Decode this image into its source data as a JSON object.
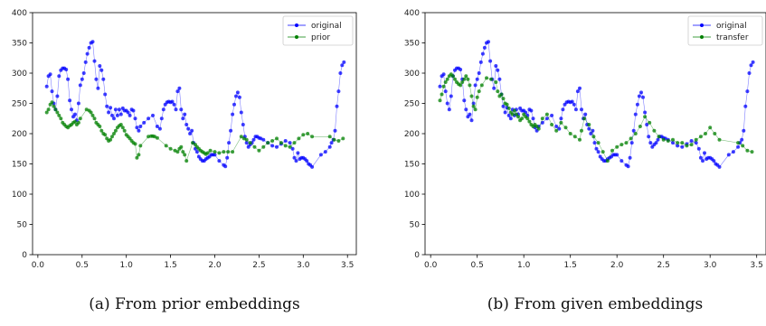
{
  "chart_data": [
    {
      "type": "line",
      "caption": "(a) From prior embeddings",
      "xlim": [
        -0.06,
        3.6
      ],
      "ylim": [
        0,
        400
      ],
      "xticks": [
        0.0,
        0.5,
        1.0,
        1.5,
        2.0,
        2.5,
        3.0,
        3.5
      ],
      "xtick_labels": [
        "0.0",
        "0.5",
        "1.0",
        "1.5",
        "2.0",
        "2.5",
        "3.0",
        "3.5"
      ],
      "yticks": [
        0,
        50,
        100,
        150,
        200,
        250,
        300,
        350,
        400
      ],
      "ytick_labels": [
        "0",
        "50",
        "100",
        "150",
        "200",
        "250",
        "300",
        "350",
        "400"
      ],
      "grid": false,
      "legend": "top-right",
      "series": [
        {
          "name": "original",
          "color": "#0000ff",
          "x": [
            0.1,
            0.12,
            0.14,
            0.16,
            0.18,
            0.2,
            0.22,
            0.24,
            0.26,
            0.28,
            0.3,
            0.32,
            0.34,
            0.36,
            0.38,
            0.4,
            0.42,
            0.44,
            0.46,
            0.48,
            0.5,
            0.52,
            0.54,
            0.56,
            0.58,
            0.6,
            0.62,
            0.64,
            0.66,
            0.68,
            0.7,
            0.72,
            0.74,
            0.76,
            0.78,
            0.8,
            0.82,
            0.84,
            0.86,
            0.88,
            0.9,
            0.92,
            0.94,
            0.96,
            0.98,
            1.0,
            1.02,
            1.04,
            1.06,
            1.08,
            1.1,
            1.12,
            1.14,
            1.16,
            1.2,
            1.25,
            1.3,
            1.35,
            1.38,
            1.4,
            1.42,
            1.44,
            1.46,
            1.48,
            1.5,
            1.52,
            1.54,
            1.56,
            1.58,
            1.6,
            1.62,
            1.64,
            1.66,
            1.68,
            1.7,
            1.72,
            1.74,
            1.76,
            1.78,
            1.8,
            1.82,
            1.84,
            1.86,
            1.88,
            1.9,
            1.92,
            1.94,
            1.96,
            1.98,
            2.0,
            2.05,
            2.1,
            2.12,
            2.14,
            2.16,
            2.18,
            2.2,
            2.22,
            2.24,
            2.26,
            2.28,
            2.3,
            2.32,
            2.34,
            2.36,
            2.38,
            2.4,
            2.42,
            2.44,
            2.46,
            2.48,
            2.5,
            2.52,
            2.55,
            2.6,
            2.65,
            2.7,
            2.75,
            2.8,
            2.85,
            2.88,
            2.9,
            2.92,
            2.94,
            2.96,
            2.98,
            3.0,
            3.02,
            3.04,
            3.06,
            3.08,
            3.1,
            3.2,
            3.25,
            3.3,
            3.32,
            3.34,
            3.36,
            3.38,
            3.4,
            3.42,
            3.44,
            3.46
          ],
          "y": [
            278,
            295,
            298,
            270,
            250,
            240,
            262,
            295,
            305,
            308,
            308,
            306,
            290,
            255,
            240,
            228,
            232,
            222,
            250,
            280,
            290,
            300,
            318,
            332,
            342,
            350,
            352,
            320,
            290,
            275,
            312,
            305,
            290,
            265,
            245,
            235,
            243,
            230,
            225,
            240,
            230,
            240,
            232,
            242,
            238,
            238,
            235,
            230,
            240,
            238,
            225,
            210,
            205,
            212,
            218,
            225,
            230,
            212,
            208,
            225,
            240,
            248,
            252,
            253,
            252,
            253,
            248,
            240,
            270,
            275,
            240,
            225,
            232,
            215,
            208,
            200,
            205,
            185,
            175,
            170,
            162,
            158,
            155,
            155,
            158,
            160,
            162,
            165,
            165,
            165,
            155,
            148,
            146,
            160,
            185,
            205,
            232,
            248,
            262,
            268,
            260,
            235,
            215,
            195,
            185,
            178,
            182,
            185,
            190,
            195,
            195,
            193,
            192,
            190,
            185,
            180,
            178,
            183,
            188,
            185,
            175,
            160,
            155,
            168,
            158,
            160,
            160,
            158,
            155,
            150,
            148,
            145,
            165,
            170,
            178,
            185,
            190,
            205,
            245,
            270,
            300,
            313,
            318
          ]
        },
        {
          "name": "prior",
          "color": "#008000",
          "x": [
            0.1,
            0.12,
            0.14,
            0.16,
            0.18,
            0.2,
            0.22,
            0.24,
            0.26,
            0.28,
            0.3,
            0.32,
            0.34,
            0.36,
            0.38,
            0.4,
            0.42,
            0.44,
            0.46,
            0.48,
            0.55,
            0.58,
            0.6,
            0.62,
            0.64,
            0.66,
            0.68,
            0.7,
            0.72,
            0.74,
            0.76,
            0.78,
            0.8,
            0.82,
            0.84,
            0.86,
            0.88,
            0.9,
            0.92,
            0.94,
            0.96,
            0.98,
            1.0,
            1.02,
            1.04,
            1.06,
            1.08,
            1.1,
            1.12,
            1.14,
            1.16,
            1.25,
            1.28,
            1.3,
            1.32,
            1.35,
            1.45,
            1.5,
            1.55,
            1.58,
            1.6,
            1.62,
            1.64,
            1.66,
            1.68,
            1.75,
            1.78,
            1.8,
            1.82,
            1.84,
            1.86,
            1.88,
            1.9,
            1.92,
            1.95,
            2.0,
            2.05,
            2.1,
            2.15,
            2.2,
            2.3,
            2.33,
            2.36,
            2.4,
            2.45,
            2.5,
            2.55,
            2.6,
            2.65,
            2.7,
            2.75,
            2.8,
            2.85,
            2.9,
            2.95,
            3.0,
            3.05,
            3.1,
            3.3,
            3.35,
            3.4,
            3.45
          ],
          "y": [
            235,
            240,
            248,
            252,
            245,
            240,
            235,
            230,
            225,
            218,
            215,
            212,
            210,
            213,
            215,
            218,
            220,
            215,
            218,
            225,
            240,
            238,
            235,
            230,
            225,
            218,
            215,
            212,
            205,
            200,
            198,
            192,
            188,
            190,
            195,
            200,
            205,
            210,
            213,
            215,
            210,
            205,
            198,
            195,
            192,
            188,
            185,
            183,
            160,
            165,
            180,
            195,
            196,
            196,
            195,
            193,
            180,
            175,
            172,
            170,
            175,
            178,
            170,
            165,
            155,
            185,
            182,
            178,
            175,
            172,
            170,
            168,
            166,
            168,
            172,
            170,
            168,
            170,
            170,
            170,
            195,
            192,
            190,
            185,
            178,
            172,
            178,
            185,
            188,
            192,
            185,
            180,
            178,
            185,
            192,
            198,
            200,
            195,
            195,
            190,
            188,
            192
          ]
        }
      ]
    },
    {
      "type": "line",
      "caption": "(b) From given embeddings",
      "xlim": [
        -0.06,
        3.6
      ],
      "ylim": [
        0,
        400
      ],
      "xticks": [
        0.0,
        0.5,
        1.0,
        1.5,
        2.0,
        2.5,
        3.0,
        3.5
      ],
      "xtick_labels": [
        "0.0",
        "0.5",
        "1.0",
        "1.5",
        "2.0",
        "2.5",
        "3.0",
        "3.5"
      ],
      "yticks": [
        0,
        50,
        100,
        150,
        200,
        250,
        300,
        350,
        400
      ],
      "ytick_labels": [
        "0",
        "50",
        "100",
        "150",
        "200",
        "250",
        "300",
        "350",
        "400"
      ],
      "grid": false,
      "legend": "top-right",
      "series": [
        {
          "name": "original",
          "color": "#0000ff",
          "x": [
            0.1,
            0.12,
            0.14,
            0.16,
            0.18,
            0.2,
            0.22,
            0.24,
            0.26,
            0.28,
            0.3,
            0.32,
            0.34,
            0.36,
            0.38,
            0.4,
            0.42,
            0.44,
            0.46,
            0.48,
            0.5,
            0.52,
            0.54,
            0.56,
            0.58,
            0.6,
            0.62,
            0.64,
            0.66,
            0.68,
            0.7,
            0.72,
            0.74,
            0.76,
            0.78,
            0.8,
            0.82,
            0.84,
            0.86,
            0.88,
            0.9,
            0.92,
            0.94,
            0.96,
            0.98,
            1.0,
            1.02,
            1.04,
            1.06,
            1.08,
            1.1,
            1.12,
            1.14,
            1.16,
            1.2,
            1.25,
            1.3,
            1.35,
            1.38,
            1.4,
            1.42,
            1.44,
            1.46,
            1.48,
            1.5,
            1.52,
            1.54,
            1.56,
            1.58,
            1.6,
            1.62,
            1.64,
            1.66,
            1.68,
            1.7,
            1.72,
            1.74,
            1.76,
            1.78,
            1.8,
            1.82,
            1.84,
            1.86,
            1.88,
            1.9,
            1.92,
            1.94,
            1.96,
            1.98,
            2.0,
            2.05,
            2.1,
            2.12,
            2.14,
            2.16,
            2.18,
            2.2,
            2.22,
            2.24,
            2.26,
            2.28,
            2.3,
            2.32,
            2.34,
            2.36,
            2.38,
            2.4,
            2.42,
            2.44,
            2.46,
            2.48,
            2.5,
            2.52,
            2.55,
            2.6,
            2.65,
            2.7,
            2.75,
            2.8,
            2.85,
            2.88,
            2.9,
            2.92,
            2.94,
            2.96,
            2.98,
            3.0,
            3.02,
            3.04,
            3.06,
            3.08,
            3.1,
            3.2,
            3.25,
            3.3,
            3.32,
            3.34,
            3.36,
            3.38,
            3.4,
            3.42,
            3.44,
            3.46
          ],
          "y": [
            278,
            295,
            298,
            270,
            250,
            240,
            262,
            295,
            305,
            308,
            308,
            306,
            290,
            255,
            240,
            228,
            232,
            222,
            250,
            280,
            290,
            300,
            318,
            332,
            342,
            350,
            352,
            320,
            290,
            275,
            312,
            305,
            290,
            265,
            245,
            235,
            243,
            230,
            225,
            240,
            230,
            240,
            232,
            242,
            238,
            238,
            235,
            230,
            240,
            238,
            225,
            210,
            205,
            212,
            218,
            225,
            230,
            212,
            208,
            225,
            240,
            248,
            252,
            253,
            252,
            253,
            248,
            240,
            270,
            275,
            240,
            225,
            232,
            215,
            208,
            200,
            205,
            185,
            175,
            170,
            162,
            158,
            155,
            155,
            158,
            160,
            162,
            165,
            165,
            165,
            155,
            148,
            146,
            160,
            185,
            205,
            232,
            248,
            262,
            268,
            260,
            235,
            215,
            195,
            185,
            178,
            182,
            185,
            190,
            195,
            195,
            193,
            192,
            190,
            185,
            180,
            178,
            183,
            188,
            185,
            175,
            160,
            155,
            168,
            158,
            160,
            160,
            158,
            155,
            150,
            148,
            145,
            165,
            170,
            178,
            185,
            190,
            205,
            245,
            270,
            300,
            313,
            318
          ]
        },
        {
          "name": "transfer",
          "color": "#008000",
          "x": [
            0.1,
            0.12,
            0.14,
            0.16,
            0.18,
            0.2,
            0.22,
            0.24,
            0.26,
            0.28,
            0.3,
            0.32,
            0.34,
            0.36,
            0.38,
            0.4,
            0.42,
            0.44,
            0.46,
            0.48,
            0.5,
            0.52,
            0.55,
            0.6,
            0.65,
            0.7,
            0.72,
            0.74,
            0.76,
            0.78,
            0.8,
            0.82,
            0.84,
            0.86,
            0.88,
            0.9,
            0.92,
            0.94,
            0.96,
            0.98,
            1.0,
            1.02,
            1.04,
            1.06,
            1.08,
            1.1,
            1.12,
            1.14,
            1.16,
            1.2,
            1.25,
            1.3,
            1.35,
            1.4,
            1.45,
            1.5,
            1.55,
            1.6,
            1.62,
            1.65,
            1.7,
            1.75,
            1.8,
            1.85,
            1.9,
            1.95,
            2.0,
            2.05,
            2.1,
            2.15,
            2.2,
            2.25,
            2.3,
            2.35,
            2.4,
            2.45,
            2.5,
            2.55,
            2.6,
            2.65,
            2.7,
            2.75,
            2.8,
            2.85,
            2.9,
            2.95,
            3.0,
            3.05,
            3.1,
            3.3,
            3.35,
            3.4,
            3.45
          ],
          "y": [
            255,
            265,
            278,
            285,
            290,
            295,
            298,
            295,
            290,
            285,
            282,
            280,
            285,
            290,
            295,
            290,
            280,
            262,
            245,
            240,
            260,
            270,
            280,
            292,
            290,
            285,
            270,
            262,
            265,
            258,
            250,
            248,
            242,
            235,
            232,
            238,
            232,
            228,
            222,
            225,
            232,
            228,
            225,
            220,
            215,
            212,
            215,
            212,
            208,
            225,
            232,
            215,
            205,
            218,
            210,
            200,
            195,
            190,
            205,
            225,
            215,
            195,
            185,
            170,
            155,
            172,
            178,
            182,
            185,
            192,
            200,
            212,
            228,
            218,
            205,
            195,
            190,
            188,
            190,
            185,
            185,
            180,
            182,
            190,
            195,
            200,
            210,
            200,
            190,
            185,
            180,
            172,
            170
          ]
        }
      ]
    }
  ]
}
